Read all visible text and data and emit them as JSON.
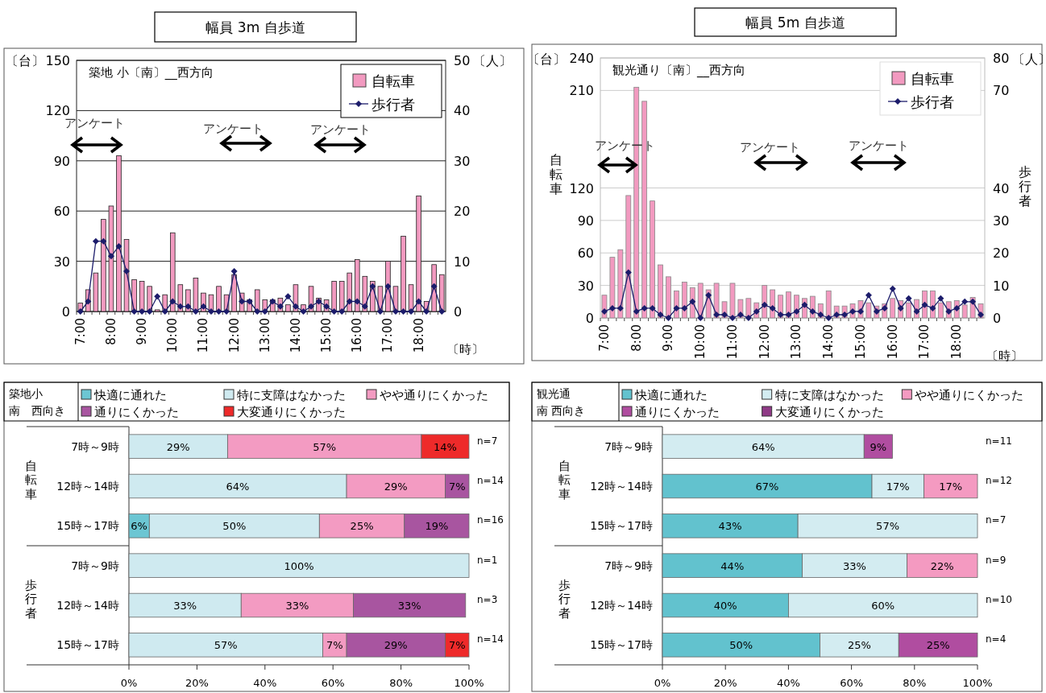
{
  "chart_data": [
    {
      "type": "bar",
      "title": "幅員 3m 自歩道",
      "subtitle": "築地 小〔南〕__西方向",
      "xlabel": "〔時〕",
      "ylabel": "〔台〕",
      "y2label": "〔人〕",
      "categories": [
        "7:00",
        null,
        null,
        null,
        "8:00",
        null,
        null,
        null,
        "9:00",
        null,
        null,
        null,
        "10:00",
        null,
        null,
        null,
        "11:00",
        null,
        null,
        null,
        "12:00",
        null,
        null,
        null,
        "13:00",
        null,
        null,
        null,
        "14:00",
        null,
        null,
        null,
        "15:00",
        null,
        null,
        null,
        "16:00",
        null,
        null,
        null,
        "17:00",
        null,
        null,
        null,
        "18:00",
        null,
        null,
        null
      ],
      "series": [
        {
          "name": "自転車",
          "type": "bar",
          "color": "#f29ac0",
          "values": [
            5,
            13,
            23,
            55,
            63,
            93,
            43,
            19,
            18,
            15,
            1,
            10,
            47,
            16,
            13,
            20,
            11,
            10,
            15,
            10,
            22,
            11,
            7,
            13,
            7,
            7,
            8,
            4,
            16,
            4,
            15,
            8,
            7,
            18,
            18,
            23,
            31,
            21,
            18,
            15,
            30,
            15,
            45,
            16,
            69,
            6,
            28,
            22
          ]
        },
        {
          "name": "歩行者",
          "type": "line",
          "axis": "y2",
          "color": "#1c1c6b",
          "values": [
            0,
            2,
            14,
            14,
            11,
            13,
            8,
            0,
            0,
            0,
            3,
            0,
            2,
            1,
            1,
            0,
            1,
            0,
            0,
            0,
            8,
            2,
            2,
            0,
            0,
            2,
            1,
            3,
            1,
            0,
            1,
            2,
            1,
            0,
            0,
            2,
            2,
            1,
            5,
            0,
            5,
            0,
            0,
            0,
            2,
            0,
            5,
            0
          ]
        }
      ],
      "ylim": [
        0,
        150
      ],
      "yticks": [
        0,
        30,
        60,
        90,
        120,
        150
      ],
      "y2lim": [
        0,
        50
      ],
      "y2ticks": [
        0,
        10,
        20,
        30,
        40,
        50
      ],
      "grid": "y",
      "legend": "top right",
      "marker": "diamond",
      "annotations": [
        "アンケート",
        "アンケート",
        "アンケート"
      ]
    },
    {
      "type": "bar",
      "title": "幅員 5m 自歩道",
      "subtitle": "観光通り〔南〕__西方向",
      "xlabel": "〔時〕",
      "ylabel": "自転車",
      "y2label": "歩行者",
      "categories": [
        "7:00",
        null,
        null,
        null,
        "8:00",
        null,
        null,
        null,
        "9:00",
        null,
        null,
        null,
        "10:00",
        null,
        null,
        null,
        "11:00",
        null,
        null,
        null,
        "12:00",
        null,
        null,
        null,
        "13:00",
        null,
        null,
        null,
        "14:00",
        null,
        null,
        null,
        "15:00",
        null,
        null,
        null,
        "16:00",
        null,
        null,
        null,
        "17:00",
        null,
        null,
        null,
        "18:00",
        null,
        null,
        null
      ],
      "series": [
        {
          "name": "自転車",
          "type": "bar",
          "color": "#f29ac0",
          "values": [
            21,
            56,
            63,
            113,
            213,
            200,
            108,
            49,
            38,
            25,
            33,
            28,
            32,
            26,
            32,
            15,
            32,
            17,
            18,
            14,
            30,
            26,
            21,
            24,
            21,
            18,
            20,
            13,
            25,
            11,
            11,
            13,
            16,
            14,
            11,
            13,
            18,
            16,
            14,
            17,
            25,
            25,
            14,
            15,
            16,
            12,
            19,
            13
          ]
        },
        {
          "name": "歩行者",
          "type": "line",
          "axis": "y2",
          "color": "#1c1c6b",
          "values": [
            2,
            3,
            3,
            14,
            2,
            3,
            3,
            1,
            0,
            3,
            3,
            5,
            0,
            7,
            1,
            1,
            0,
            1,
            0,
            2,
            4,
            3,
            1,
            1,
            2,
            4,
            2,
            1,
            0,
            1,
            1,
            2,
            2,
            7,
            2,
            3,
            9,
            3,
            6,
            2,
            4,
            3,
            6,
            2,
            3,
            5,
            5,
            1
          ]
        }
      ],
      "ylim": [
        0,
        240
      ],
      "yticks": [
        0,
        30,
        60,
        90,
        120,
        210,
        240
      ],
      "y2lim": [
        0,
        80
      ],
      "y2ticks": [
        0,
        10,
        20,
        30,
        40,
        70,
        80
      ],
      "grid": "y",
      "legend": "top right",
      "marker": "diamond",
      "annotations": [
        "〔台〕",
        "〔人〕",
        "アンケート",
        "アンケート",
        "アンケート"
      ]
    },
    {
      "type": "bar",
      "orientation": "horizontal",
      "stacked": true,
      "title": "築地小",
      "subtitle": "南　西向き",
      "legend": "top",
      "categories": [
        "7時～9時",
        "12時～14時",
        "15時～17時",
        "7時～9時",
        "12時～14時",
        "15時～17時"
      ],
      "series": [
        {
          "name": "快適に通れた",
          "color": "#6cc6d3",
          "values": [
            null,
            null,
            6,
            null,
            null,
            null
          ],
          "value_labels": [
            null,
            null,
            "6%",
            null,
            null,
            null
          ]
        },
        {
          "name": "特に支障はなかった",
          "color": "#cfeaf0",
          "values": [
            29,
            64,
            50,
            100,
            33,
            57
          ],
          "value_labels": [
            "29%",
            "64%",
            "50%",
            "100%",
            "33%",
            "57%"
          ]
        },
        {
          "name": "やや通りにくかった",
          "color": "#f39bc2",
          "values": [
            57,
            29,
            25,
            null,
            33,
            7
          ],
          "value_labels": [
            "57%",
            "29%",
            "25%",
            null,
            "33%",
            "7%"
          ]
        },
        {
          "name": "通りにくかった",
          "color": "#a855a0",
          "values": [
            null,
            7,
            19,
            null,
            33,
            29
          ],
          "value_labels": [
            null,
            "7%",
            "19%",
            null,
            "33%",
            "29%"
          ]
        },
        {
          "name": "大変通りにくかった",
          "color": "#ee2a2a",
          "values": [
            14,
            null,
            null,
            null,
            null,
            7
          ],
          "value_labels": [
            "14%",
            null,
            null,
            null,
            null,
            "7%"
          ]
        }
      ],
      "xlim": [
        0,
        100
      ],
      "xticks": [
        {
          "value": 0,
          "label": "0%"
        },
        {
          "value": 20,
          "label": "20%"
        },
        {
          "value": 40,
          "label": "40%"
        },
        {
          "value": 60,
          "label": "60%"
        },
        {
          "value": 80,
          "label": "80%"
        },
        {
          "value": 100,
          "label": "100%"
        }
      ],
      "annotations": [
        "自転車",
        "歩行者",
        "n=7",
        "n=14",
        "n=16",
        "n=1",
        "n=3",
        "n=14"
      ]
    },
    {
      "type": "bar",
      "orientation": "horizontal",
      "stacked": true,
      "title": "観光通",
      "subtitle": "南 西向き",
      "legend": "top",
      "categories": [
        "7時～9時",
        "12時～14時",
        "15時～17時",
        "7時～9時",
        "12時～14時",
        "15時～17時"
      ],
      "series": [
        {
          "name": "快適に通れた",
          "color": "#62c2ce",
          "values": [
            null,
            66.5,
            43,
            44.4,
            40,
            50
          ],
          "value_labels": [
            null,
            "67%",
            "43%",
            "44%",
            "40%",
            "50%"
          ]
        },
        {
          "name": "特に支障はなかった",
          "color": "#d3ecf1",
          "values": [
            64,
            16.5,
            57,
            33.2,
            60,
            25
          ],
          "value_labels": [
            "64%",
            "17%",
            "57%",
            "33%",
            "60%",
            "25%"
          ]
        },
        {
          "name": "やや通りにくかった",
          "color": "#f49ac1",
          "values": [
            null,
            17,
            null,
            22.4,
            null,
            null
          ],
          "value_labels": [
            null,
            "17%",
            null,
            "22%",
            null,
            null
          ]
        },
        {
          "name": "通りにくかった",
          "color": "#b04da0",
          "values": [
            9,
            null,
            null,
            null,
            null,
            25
          ],
          "value_labels": [
            "9%",
            null,
            null,
            null,
            null,
            "25%"
          ]
        },
        {
          "name": "大変通りにくかった",
          "color": "#8f3a86",
          "values": [
            null,
            null,
            null,
            null,
            null,
            null
          ]
        }
      ],
      "xlim": [
        0,
        100
      ],
      "xticks": [
        {
          "value": 0,
          "label": "0%"
        },
        {
          "value": 20,
          "label": "20%"
        },
        {
          "value": 40,
          "label": "40%"
        },
        {
          "value": 60,
          "label": "60%"
        },
        {
          "value": 80,
          "label": "80%"
        },
        {
          "value": 100,
          "label": "100%"
        }
      ],
      "annotations": [
        "自転車",
        "歩行者",
        "n=11",
        "n=12",
        "n=7",
        "n=9",
        "n=10",
        "n=4"
      ]
    }
  ]
}
